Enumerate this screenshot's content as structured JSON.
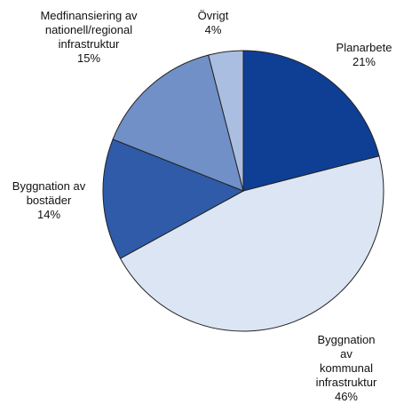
{
  "chart_data": {
    "type": "pie",
    "categories": [
      "Planarbete",
      "Byggnation av\nkommunal\ninfrastruktur",
      "Byggnation av\nbostäder",
      "Medfinansiering av\nnationell/regional\ninfrastruktur",
      "Övrigt"
    ],
    "values": [
      21,
      46,
      14,
      15,
      4
    ],
    "value_labels": [
      "21%",
      "46%",
      "14%",
      "15%",
      "4%"
    ],
    "colors": [
      "#0e3f94",
      "#dce5f3",
      "#2f5ba9",
      "#7190c7",
      "#aabee1"
    ]
  }
}
